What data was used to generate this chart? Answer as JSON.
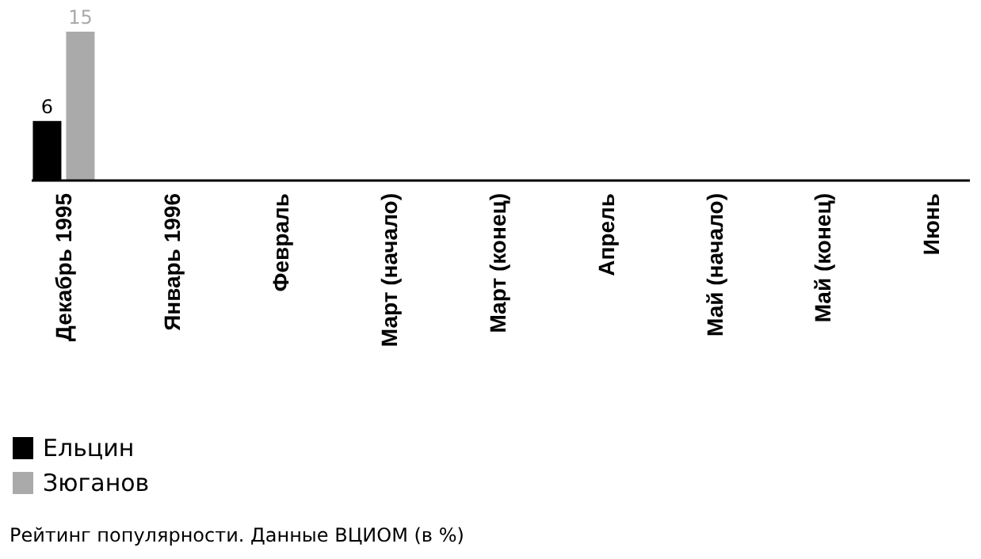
{
  "chart_data": {
    "type": "bar",
    "categories": [
      "Декабрь 1995",
      "Январь 1996",
      "Февраль",
      "Март (начало)",
      "Март (конец)",
      "Апрель",
      "Май (начало)",
      "Май (конец)",
      "Июнь"
    ],
    "series": [
      {
        "name": "Ельцин",
        "color": "#000000",
        "values": [
          6,
          null,
          null,
          null,
          null,
          null,
          null,
          null,
          null
        ]
      },
      {
        "name": "Зюганов",
        "color": "#aaaaaa",
        "values": [
          15,
          null,
          null,
          null,
          null,
          null,
          null,
          null,
          null
        ]
      }
    ],
    "data_labels": true,
    "legend": "bottom left",
    "annotations": [
      "Рейтинг популярности. Данные ВЦИОМ (в %)"
    ]
  }
}
